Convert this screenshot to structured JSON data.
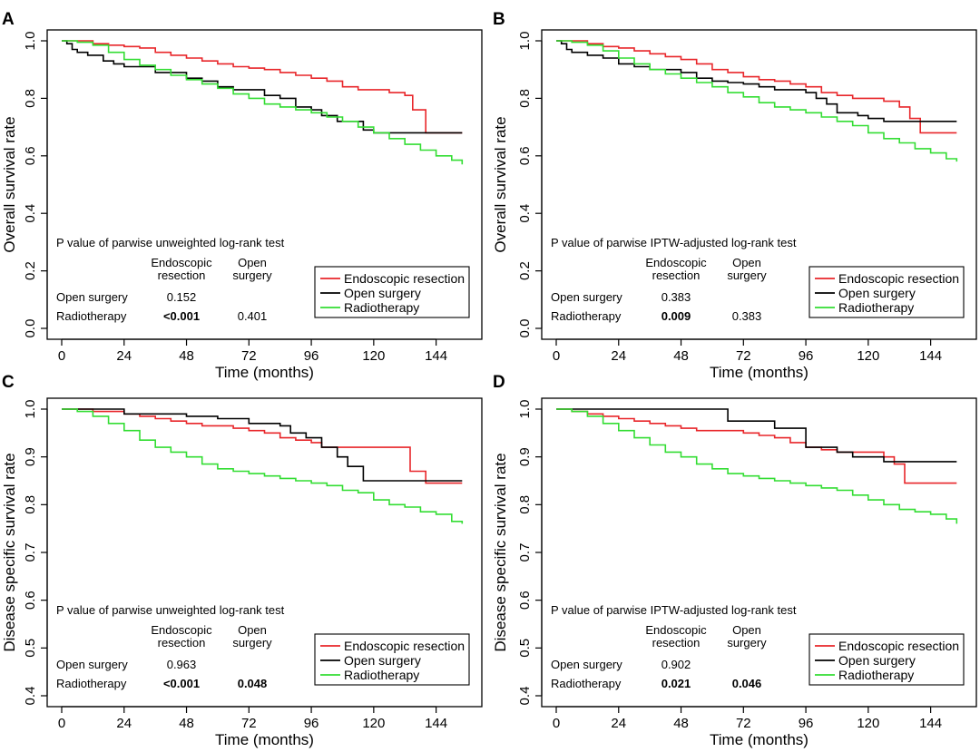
{
  "figure": {
    "colors": {
      "endoscopic": "#e8262a",
      "open": "#000000",
      "radio": "#33dd33"
    },
    "legend_icon": "line-swatch"
  },
  "chart_data": [
    {
      "type": "line",
      "panel_label": "A",
      "xlabel": "Time (months)",
      "ylabel": "Overall survival rate",
      "xlim": [
        0,
        156
      ],
      "ylim": [
        0.0,
        1.0
      ],
      "xticks": [
        0,
        24,
        48,
        72,
        96,
        120,
        144
      ],
      "yticks": [
        "0.0",
        "0.2",
        "0.4",
        "0.6",
        "0.8",
        "1.0"
      ],
      "grid": false,
      "legend": {
        "position": "bottom-right",
        "entries": [
          "Endoscopic resection",
          "Open surgery",
          "Radiotherapy"
        ]
      },
      "pvalue_table": {
        "title": "P value of parwise unweighted log-rank test",
        "col_headers": [
          [
            "Endoscopic",
            "resection"
          ],
          [
            "Open",
            "surgery"
          ]
        ],
        "rows": [
          {
            "label": "Open surgery",
            "cells": [
              {
                "text": "0.152",
                "bold": false
              },
              {
                "text": "",
                "bold": false
              }
            ]
          },
          {
            "label": "Radiotherapy",
            "cells": [
              {
                "text": "<0.001",
                "bold": true
              },
              {
                "text": "0.401",
                "bold": false
              }
            ]
          }
        ]
      },
      "series": [
        {
          "name": "Endoscopic resection",
          "color": "#e8262a",
          "x": [
            0,
            6,
            12,
            18,
            24,
            30,
            36,
            42,
            48,
            54,
            60,
            66,
            72,
            78,
            84,
            90,
            96,
            102,
            108,
            114,
            120,
            126,
            132,
            135,
            140,
            154
          ],
          "y": [
            1.0,
            1.0,
            0.99,
            0.985,
            0.98,
            0.975,
            0.96,
            0.95,
            0.94,
            0.93,
            0.92,
            0.91,
            0.905,
            0.9,
            0.89,
            0.88,
            0.87,
            0.86,
            0.84,
            0.83,
            0.83,
            0.82,
            0.81,
            0.76,
            0.68,
            0.68
          ]
        },
        {
          "name": "Open surgery",
          "color": "#000000",
          "x": [
            0,
            2,
            4,
            6,
            10,
            16,
            20,
            24,
            36,
            48,
            54,
            60,
            66,
            72,
            78,
            84,
            90,
            96,
            100,
            106,
            116,
            120,
            154
          ],
          "y": [
            1.0,
            0.99,
            0.97,
            0.96,
            0.95,
            0.93,
            0.92,
            0.91,
            0.89,
            0.87,
            0.86,
            0.84,
            0.83,
            0.83,
            0.81,
            0.8,
            0.77,
            0.76,
            0.74,
            0.72,
            0.69,
            0.68,
            0.68
          ]
        },
        {
          "name": "Radiotherapy",
          "color": "#33dd33",
          "x": [
            0,
            6,
            12,
            18,
            24,
            30,
            36,
            42,
            48,
            54,
            60,
            66,
            72,
            78,
            84,
            90,
            96,
            102,
            108,
            114,
            120,
            126,
            132,
            138,
            144,
            150,
            154
          ],
          "y": [
            1.0,
            0.995,
            0.985,
            0.96,
            0.935,
            0.915,
            0.9,
            0.88,
            0.865,
            0.85,
            0.835,
            0.815,
            0.8,
            0.78,
            0.77,
            0.76,
            0.75,
            0.735,
            0.72,
            0.7,
            0.68,
            0.66,
            0.64,
            0.62,
            0.6,
            0.585,
            0.57
          ]
        }
      ]
    },
    {
      "type": "line",
      "panel_label": "B",
      "xlabel": "Time (months)",
      "ylabel": "Overall survival rate",
      "xlim": [
        0,
        156
      ],
      "ylim": [
        0.0,
        1.0
      ],
      "xticks": [
        0,
        24,
        48,
        72,
        96,
        120,
        144
      ],
      "yticks": [
        "0.0",
        "0.2",
        "0.4",
        "0.6",
        "0.8",
        "1.0"
      ],
      "grid": false,
      "legend": {
        "position": "bottom-right",
        "entries": [
          "Endoscopic resection",
          "Open surgery",
          "Radiotherapy"
        ]
      },
      "pvalue_table": {
        "title": "P value of parwise IPTW-adjusted log-rank test",
        "col_headers": [
          [
            "Endoscopic",
            "resection"
          ],
          [
            "Open",
            "surgery"
          ]
        ],
        "rows": [
          {
            "label": "Open surgery",
            "cells": [
              {
                "text": "0.383",
                "bold": false
              },
              {
                "text": "",
                "bold": false
              }
            ]
          },
          {
            "label": "Radiotherapy",
            "cells": [
              {
                "text": "0.009",
                "bold": true
              },
              {
                "text": "0.383",
                "bold": false
              }
            ]
          }
        ]
      },
      "series": [
        {
          "name": "Endoscopic resection",
          "color": "#e8262a",
          "x": [
            0,
            6,
            12,
            18,
            24,
            30,
            36,
            42,
            48,
            54,
            60,
            66,
            72,
            78,
            84,
            90,
            96,
            102,
            108,
            114,
            120,
            126,
            132,
            136,
            140,
            154
          ],
          "y": [
            1.0,
            1.0,
            0.99,
            0.98,
            0.975,
            0.965,
            0.955,
            0.945,
            0.935,
            0.92,
            0.9,
            0.89,
            0.875,
            0.865,
            0.86,
            0.85,
            0.84,
            0.82,
            0.81,
            0.8,
            0.8,
            0.79,
            0.77,
            0.73,
            0.68,
            0.68
          ]
        },
        {
          "name": "Open surgery",
          "color": "#000000",
          "x": [
            0,
            2,
            4,
            6,
            12,
            18,
            24,
            30,
            36,
            48,
            54,
            60,
            66,
            72,
            78,
            84,
            90,
            96,
            100,
            104,
            108,
            116,
            120,
            126,
            154
          ],
          "y": [
            1.0,
            0.99,
            0.97,
            0.96,
            0.95,
            0.94,
            0.92,
            0.91,
            0.9,
            0.89,
            0.87,
            0.86,
            0.855,
            0.85,
            0.84,
            0.83,
            0.83,
            0.82,
            0.8,
            0.78,
            0.75,
            0.74,
            0.73,
            0.72,
            0.72
          ]
        },
        {
          "name": "Radiotherapy",
          "color": "#33dd33",
          "x": [
            0,
            6,
            12,
            18,
            24,
            30,
            36,
            42,
            48,
            54,
            60,
            66,
            72,
            78,
            84,
            90,
            96,
            102,
            108,
            114,
            120,
            126,
            132,
            138,
            144,
            150,
            154
          ],
          "y": [
            1.0,
            0.995,
            0.985,
            0.965,
            0.94,
            0.92,
            0.9,
            0.885,
            0.87,
            0.855,
            0.84,
            0.82,
            0.805,
            0.785,
            0.77,
            0.76,
            0.75,
            0.735,
            0.72,
            0.705,
            0.68,
            0.66,
            0.645,
            0.625,
            0.61,
            0.59,
            0.58
          ]
        }
      ]
    },
    {
      "type": "line",
      "panel_label": "C",
      "xlabel": "Time (months)",
      "ylabel": "Disease specific survival rate",
      "xlim": [
        0,
        156
      ],
      "ylim": [
        0.4,
        1.0
      ],
      "xticks": [
        0,
        24,
        48,
        72,
        96,
        120,
        144
      ],
      "yticks": [
        "0.4",
        "0.5",
        "0.6",
        "0.7",
        "0.8",
        "0.9",
        "1.0"
      ],
      "grid": false,
      "legend": {
        "position": "bottom-right",
        "entries": [
          "Endoscopic resection",
          "Open surgery",
          "Radiotherapy"
        ]
      },
      "pvalue_table": {
        "title": "P value of parwise unweighted log-rank test",
        "col_headers": [
          [
            "Endoscopic",
            "resection"
          ],
          [
            "Open",
            "surgery"
          ]
        ],
        "rows": [
          {
            "label": "Open surgery",
            "cells": [
              {
                "text": "0.963",
                "bold": false
              },
              {
                "text": "",
                "bold": false
              }
            ]
          },
          {
            "label": "Radiotherapy",
            "cells": [
              {
                "text": "<0.001",
                "bold": true
              },
              {
                "text": "0.048",
                "bold": true
              }
            ]
          }
        ]
      },
      "series": [
        {
          "name": "Endoscopic resection",
          "color": "#e8262a",
          "x": [
            0,
            6,
            12,
            24,
            30,
            36,
            42,
            48,
            54,
            60,
            66,
            72,
            78,
            84,
            90,
            96,
            100,
            110,
            120,
            128,
            134,
            140,
            154
          ],
          "y": [
            1.0,
            1.0,
            0.995,
            0.99,
            0.985,
            0.98,
            0.975,
            0.97,
            0.965,
            0.965,
            0.96,
            0.955,
            0.95,
            0.94,
            0.935,
            0.93,
            0.92,
            0.92,
            0.92,
            0.92,
            0.87,
            0.845,
            0.845
          ]
        },
        {
          "name": "Open surgery",
          "color": "#000000",
          "x": [
            0,
            12,
            24,
            36,
            48,
            60,
            72,
            84,
            88,
            94,
            100,
            106,
            110,
            116,
            154
          ],
          "y": [
            1.0,
            1.0,
            0.99,
            0.99,
            0.985,
            0.98,
            0.97,
            0.965,
            0.95,
            0.94,
            0.92,
            0.9,
            0.88,
            0.85,
            0.85
          ]
        },
        {
          "name": "Radiotherapy",
          "color": "#33dd33",
          "x": [
            0,
            6,
            12,
            18,
            24,
            30,
            36,
            42,
            48,
            54,
            60,
            66,
            72,
            78,
            84,
            90,
            96,
            102,
            108,
            114,
            120,
            126,
            132,
            138,
            144,
            150,
            154
          ],
          "y": [
            1.0,
            0.995,
            0.985,
            0.97,
            0.955,
            0.935,
            0.92,
            0.91,
            0.9,
            0.885,
            0.875,
            0.87,
            0.865,
            0.86,
            0.855,
            0.85,
            0.845,
            0.84,
            0.83,
            0.825,
            0.81,
            0.8,
            0.795,
            0.785,
            0.78,
            0.765,
            0.76
          ]
        }
      ]
    },
    {
      "type": "line",
      "panel_label": "D",
      "xlabel": "Time (months)",
      "ylabel": "Disease specific survival rate",
      "xlim": [
        0,
        156
      ],
      "ylim": [
        0.4,
        1.0
      ],
      "xticks": [
        0,
        24,
        48,
        72,
        96,
        120,
        144
      ],
      "yticks": [
        "0.4",
        "0.5",
        "0.6",
        "0.7",
        "0.8",
        "0.9",
        "1.0"
      ],
      "grid": false,
      "legend": {
        "position": "bottom-right",
        "entries": [
          "Endoscopic resection",
          "Open surgery",
          "Radiotherapy"
        ]
      },
      "pvalue_table": {
        "title": "P value of parwise IPTW-adjusted log-rank test",
        "col_headers": [
          [
            "Endoscopic",
            "resection"
          ],
          [
            "Open",
            "surgery"
          ]
        ],
        "rows": [
          {
            "label": "Open surgery",
            "cells": [
              {
                "text": "0.902",
                "bold": false
              },
              {
                "text": "",
                "bold": false
              }
            ]
          },
          {
            "label": "Radiotherapy",
            "cells": [
              {
                "text": "0.021",
                "bold": true
              },
              {
                "text": "0.046",
                "bold": true
              }
            ]
          }
        ]
      },
      "series": [
        {
          "name": "Endoscopic resection",
          "color": "#e8262a",
          "x": [
            0,
            6,
            12,
            18,
            24,
            30,
            36,
            42,
            48,
            54,
            60,
            66,
            72,
            78,
            84,
            90,
            96,
            102,
            108,
            114,
            120,
            126,
            130,
            134,
            140,
            154
          ],
          "y": [
            1.0,
            0.995,
            0.99,
            0.985,
            0.98,
            0.975,
            0.97,
            0.965,
            0.96,
            0.955,
            0.955,
            0.955,
            0.95,
            0.945,
            0.94,
            0.93,
            0.92,
            0.915,
            0.91,
            0.91,
            0.91,
            0.9,
            0.885,
            0.845,
            0.845,
            0.845
          ]
        },
        {
          "name": "Open surgery",
          "color": "#000000",
          "x": [
            0,
            12,
            24,
            36,
            48,
            60,
            66,
            72,
            78,
            84,
            90,
            96,
            102,
            108,
            114,
            120,
            126,
            132,
            154
          ],
          "y": [
            1.0,
            1.0,
            1.0,
            1.0,
            1.0,
            1.0,
            0.975,
            0.975,
            0.975,
            0.96,
            0.96,
            0.92,
            0.92,
            0.91,
            0.9,
            0.9,
            0.89,
            0.89,
            0.89
          ]
        },
        {
          "name": "Radiotherapy",
          "color": "#33dd33",
          "x": [
            0,
            6,
            12,
            18,
            24,
            30,
            36,
            42,
            48,
            54,
            60,
            66,
            72,
            78,
            84,
            90,
            96,
            102,
            108,
            114,
            120,
            126,
            132,
            138,
            144,
            150,
            154
          ],
          "y": [
            1.0,
            0.995,
            0.985,
            0.97,
            0.955,
            0.94,
            0.925,
            0.91,
            0.9,
            0.885,
            0.875,
            0.865,
            0.86,
            0.855,
            0.85,
            0.845,
            0.84,
            0.835,
            0.83,
            0.82,
            0.81,
            0.8,
            0.79,
            0.785,
            0.78,
            0.77,
            0.76
          ]
        }
      ]
    }
  ]
}
